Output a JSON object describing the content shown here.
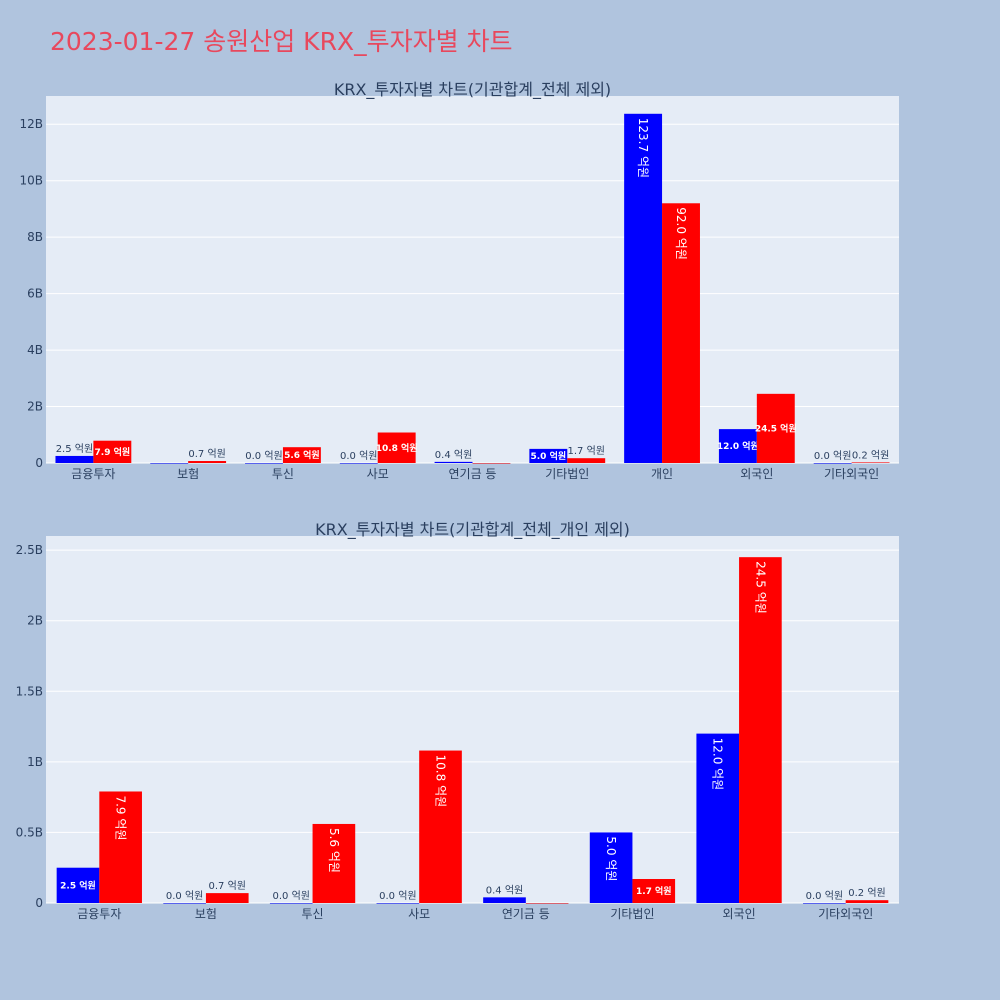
{
  "title": "2023-01-27 송원산업 KRX_투자자별 차트",
  "colors": {
    "buy": "#0000ff",
    "sell": "#ff0000",
    "plot_bg": "#e5ecf6",
    "paper_bg": "#b0c4de"
  },
  "chart_data": [
    {
      "type": "bar",
      "title": "KRX_투자자별 차트(기관합계_전체 제외)",
      "categories": [
        "금융투자",
        "보험",
        "투신",
        "사모",
        "연기금 등",
        "기타법인",
        "개인",
        "외국인",
        "기타외국인"
      ],
      "series": [
        {
          "color": "blue",
          "values": [
            250000000,
            0,
            0,
            0,
            40000000,
            500000000,
            12370000000,
            1200000000,
            0
          ],
          "labels": [
            "2.5 억원",
            "",
            "0.0 억원",
            "0.0 억원",
            "0.4 억원",
            "5.0 억원",
            "123.7 억원",
            "12.0 억원",
            "0.0 억원"
          ]
        },
        {
          "color": "red",
          "values": [
            790000000,
            70000000,
            560000000,
            1080000000,
            0,
            170000000,
            9200000000,
            2450000000,
            20000000
          ],
          "labels": [
            "7.9 억원",
            "0.7 억원",
            "5.6 억원",
            "10.8 억원",
            "",
            "1.7 억원",
            "92.0 억원",
            "24.5 억원",
            "0.2 억원"
          ]
        }
      ],
      "ylim": [
        0,
        13000000000
      ],
      "yticks": [
        0,
        2000000000,
        4000000000,
        6000000000,
        8000000000,
        10000000000,
        12000000000
      ],
      "yticklabels": [
        "0",
        "2B",
        "4B",
        "6B",
        "8B",
        "10B",
        "12B"
      ],
      "grid": true
    },
    {
      "type": "bar",
      "title": "KRX_투자자별 차트(기관합계_전체_개인 제외)",
      "categories": [
        "금융투자",
        "보험",
        "투신",
        "사모",
        "연기금 등",
        "기타법인",
        "외국인",
        "기타외국인"
      ],
      "series": [
        {
          "color": "blue",
          "values": [
            250000000,
            0,
            0,
            0,
            40000000,
            500000000,
            1200000000,
            0
          ],
          "labels": [
            "2.5 억원",
            "0.0 억원",
            "0.0 억원",
            "0.0 억원",
            "0.4 억원",
            "5.0 억원",
            "12.0 억원",
            "0.0 억원"
          ]
        },
        {
          "color": "red",
          "values": [
            790000000,
            70000000,
            560000000,
            1080000000,
            0,
            170000000,
            2450000000,
            20000000
          ],
          "labels": [
            "7.9 억원",
            "0.7 억원",
            "5.6 억원",
            "10.8 억원",
            "",
            "1.7 억원",
            "24.5 억원",
            "0.2 억원"
          ]
        }
      ],
      "ylim": [
        0,
        2600000000
      ],
      "yticks": [
        0,
        500000000,
        1000000000,
        1500000000,
        2000000000,
        2500000000
      ],
      "yticklabels": [
        "0",
        "0.5B",
        "1B",
        "1.5B",
        "2B",
        "2.5B"
      ],
      "grid": true
    }
  ]
}
